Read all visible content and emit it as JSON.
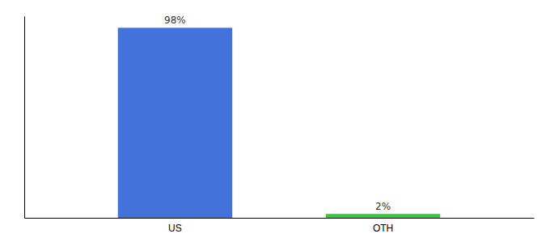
{
  "chart_data": {
    "type": "bar",
    "categories": [
      "US",
      "OTH"
    ],
    "values": [
      98,
      2
    ],
    "value_labels": [
      "98%",
      "2%"
    ],
    "colors": [
      "#4472db",
      "#33cc33"
    ],
    "ylim": [
      0,
      104
    ],
    "data_labels": true,
    "tick_labels": "x"
  }
}
